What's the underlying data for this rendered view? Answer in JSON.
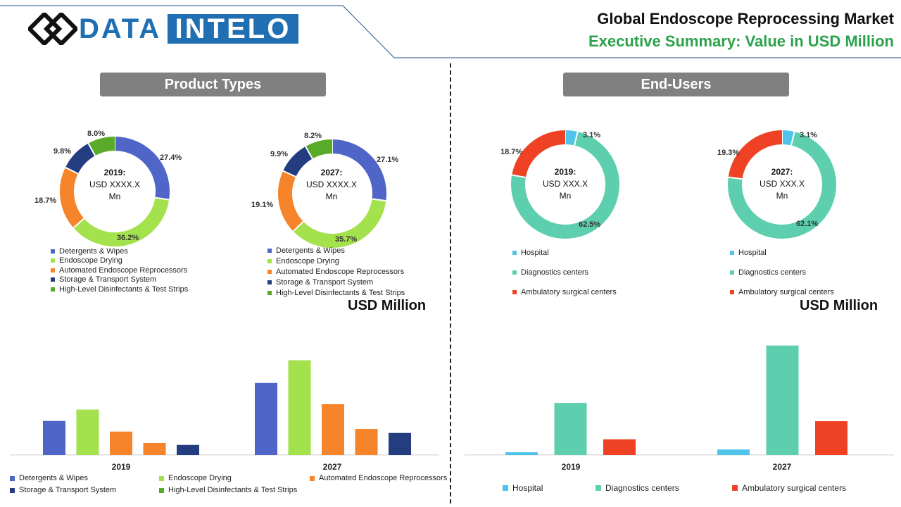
{
  "header": {
    "logo_left": "DATA",
    "logo_right": "INTELO",
    "title": "Global Endoscope Reprocessing Market",
    "subtitle": "Executive Summary: Value in USD Million"
  },
  "colors": {
    "brand_blue": "#1f6fb2",
    "accent_green": "#2ca24a",
    "pill_gray": "#808080"
  },
  "sections": {
    "product_types": "Product Types",
    "end_users": "End-Users"
  },
  "units_label": "USD Million",
  "chart_data": [
    {
      "id": "product-donut-2019",
      "type": "pie",
      "center_lines": [
        "2019:",
        "USD XXXX.X",
        "Mn"
      ],
      "labels": [
        "Detergents & Wipes",
        "Endoscope Drying",
        "Automated Endoscope Reprocessors",
        "Storage & Transport System",
        "High-Level Disinfectants & Test Strips"
      ],
      "values": [
        27.4,
        36.2,
        18.7,
        9.8,
        8.0
      ],
      "value_labels": [
        "27.4%",
        "36.2%",
        "18.7%",
        "9.8%",
        "8.0%"
      ],
      "colors": [
        "#4f65c7",
        "#a3e14d",
        "#f5842a",
        "#243d80",
        "#5aaa2a"
      ]
    },
    {
      "id": "product-donut-2027",
      "type": "pie",
      "center_lines": [
        "2027:",
        "USD XXXX.X",
        "Mn"
      ],
      "labels": [
        "Detergents & Wipes",
        "Endoscope Drying",
        "Automated Endoscope Reprocessors",
        "Storage & Transport System",
        "High-Level Disinfectants & Test Strips"
      ],
      "values": [
        27.1,
        35.7,
        19.1,
        9.9,
        8.2
      ],
      "value_labels": [
        "27.1%",
        "35.7%",
        "19.1%",
        "9.9%",
        "8.2%"
      ],
      "colors": [
        "#4f65c7",
        "#a3e14d",
        "#f5842a",
        "#243d80",
        "#5aaa2a"
      ]
    },
    {
      "id": "enduser-donut-2019",
      "type": "pie",
      "center_lines": [
        "2019:",
        "USD XXX.X",
        "Mn"
      ],
      "labels": [
        "Hospital",
        "Diagnostics centers",
        "Ambulatory surgical centers"
      ],
      "values": [
        3.1,
        62.5,
        18.7
      ],
      "value_labels": [
        "3.1%",
        "62.5%",
        "18.7%"
      ],
      "colors": [
        "#4fc4ea",
        "#5dcfae",
        "#ef4123"
      ]
    },
    {
      "id": "enduser-donut-2027",
      "type": "pie",
      "center_lines": [
        "2027:",
        "USD XXX.X",
        "Mn"
      ],
      "labels": [
        "Hospital",
        "Diagnostics centers",
        "Ambulatory surgical centers"
      ],
      "values": [
        3.1,
        62.1,
        19.3
      ],
      "value_labels": [
        "3.1%",
        "62.1%",
        "19.3%"
      ],
      "colors": [
        "#4fc4ea",
        "#5dcfae",
        "#ef4123"
      ]
    },
    {
      "id": "product-bars",
      "type": "bar",
      "categories": [
        "2019",
        "2027"
      ],
      "series": [
        {
          "name": "Detergents & Wipes",
          "values": [
            51,
            108
          ],
          "color": "#4f65c7"
        },
        {
          "name": "Endoscope Drying",
          "values": [
            68,
            142
          ],
          "color": "#a3e14d"
        },
        {
          "name": "Automated Endoscope Reprocessors",
          "values": [
            35,
            76
          ],
          "color": "#f5842a"
        },
        {
          "name": "Storage & Transport System",
          "values": [
            18,
            39
          ],
          "color": "#f5842a"
        },
        {
          "name": "High-Level Disinfectants & Test Strips",
          "values": [
            15,
            33
          ],
          "color": "#243d80"
        }
      ],
      "ylim": [
        0,
        150
      ]
    },
    {
      "id": "enduser-bars",
      "type": "bar",
      "categories": [
        "2019",
        "2027"
      ],
      "series": [
        {
          "name": "Hospital",
          "values": [
            4,
            8
          ],
          "color": "#4fc4ea"
        },
        {
          "name": "Diagnostics centers",
          "values": [
            77,
            162
          ],
          "color": "#5dcfae"
        },
        {
          "name": "Ambulatory surgical centers",
          "values": [
            23,
            50
          ],
          "color": "#ef4123"
        }
      ],
      "ylim": [
        0,
        170
      ]
    }
  ],
  "product_bar_legend": [
    {
      "label": "Detergents & Wipes",
      "color": "#4f65c7"
    },
    {
      "label": "Endoscope Drying",
      "color": "#a3e14d"
    },
    {
      "label": "Automated Endoscope Reprocessors",
      "color": "#f5842a"
    },
    {
      "label": "Storage & Transport System",
      "color": "#243d80"
    },
    {
      "label": "High-Level Disinfectants & Test Strips",
      "color": "#5aaa2a"
    }
  ]
}
